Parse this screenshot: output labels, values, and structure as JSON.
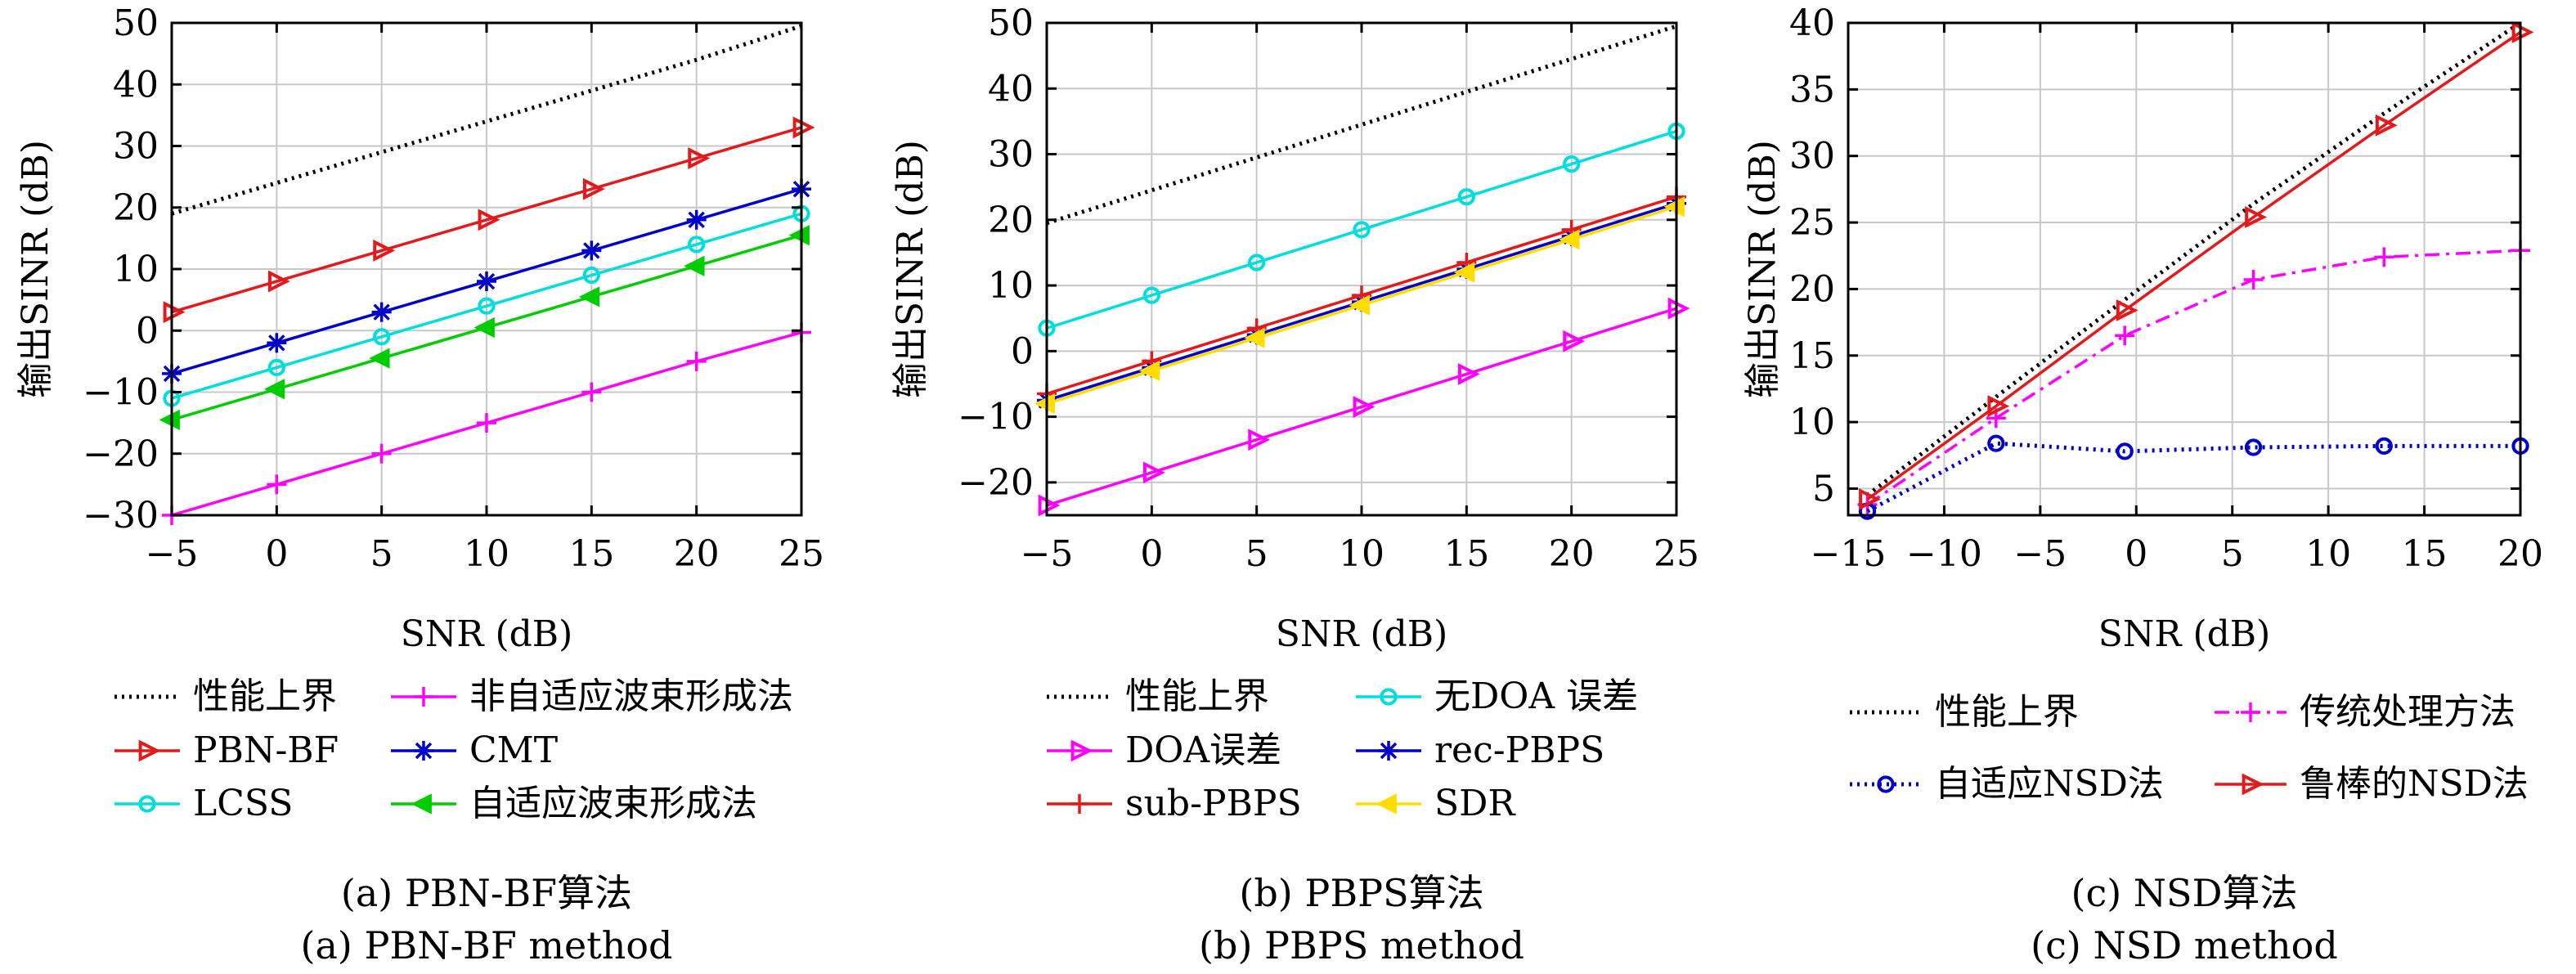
{
  "chart_data": [
    {
      "type": "line",
      "ylabel": "输出SINR (dB)",
      "xlabel": "SNR (dB)",
      "xlim": [
        -5,
        25
      ],
      "ylim": [
        -30,
        50
      ],
      "xticks": [
        -5,
        0,
        5,
        10,
        15,
        20,
        25
      ],
      "yticks": [
        -30,
        -20,
        -10,
        0,
        10,
        20,
        30,
        40,
        50
      ],
      "x": [
        -5,
        0,
        5,
        10,
        15,
        20,
        25
      ],
      "grid": true,
      "legend_placement": "bottom",
      "caption_cn": "(a) PBN-BF算法",
      "caption_en": "(a) PBN-BF method",
      "series": [
        {
          "name": "性能上界",
          "color": "#000000",
          "marker": "none",
          "dash": "dotted",
          "values": [
            19,
            24,
            29,
            34,
            39,
            44,
            49.5
          ]
        },
        {
          "name": "非自适应波束形成法",
          "color": "#ff00ff",
          "marker": "plus",
          "dash": "solid",
          "values": [
            -30,
            -25,
            -20,
            -15,
            -10,
            -5,
            -0.3
          ]
        },
        {
          "name": "PBN-BF",
          "color": "#e31a1c",
          "marker": "triangle-right",
          "dash": "solid",
          "values": [
            3,
            8,
            13,
            18,
            23,
            28,
            33
          ]
        },
        {
          "name": "CMT",
          "color": "#0000cc",
          "marker": "star",
          "dash": "solid",
          "values": [
            -7,
            -2,
            3,
            8,
            13,
            18,
            23
          ]
        },
        {
          "name": "LCSS",
          "color": "#00dddd",
          "marker": "circle",
          "dash": "solid",
          "values": [
            -11,
            -6,
            -1,
            4,
            9,
            14,
            19
          ]
        },
        {
          "name": "自适应波束形成法",
          "color": "#00cc00",
          "marker": "triangle-left",
          "dash": "solid",
          "values": [
            -14.5,
            -9.5,
            -4.5,
            0.5,
            5.5,
            10.5,
            15.5
          ]
        }
      ]
    },
    {
      "type": "line",
      "ylabel": "输出SINR (dB)",
      "xlabel": "SNR (dB)",
      "xlim": [
        -5,
        25
      ],
      "ylim": [
        -25,
        50
      ],
      "xticks": [
        -5,
        0,
        5,
        10,
        15,
        20,
        25
      ],
      "yticks": [
        -20,
        -10,
        0,
        10,
        20,
        30,
        40,
        50
      ],
      "x": [
        -5,
        0,
        5,
        10,
        15,
        20,
        25
      ],
      "grid": true,
      "legend_placement": "bottom",
      "caption_cn": "(b) PBPS算法",
      "caption_en": "(b) PBPS method",
      "series": [
        {
          "name": "性能上界",
          "color": "#000000",
          "marker": "none",
          "dash": "dotted",
          "values": [
            19.5,
            24.5,
            29.5,
            34.5,
            39.5,
            44.5,
            49.5
          ]
        },
        {
          "name": "无DOA 误差",
          "color": "#00dddd",
          "marker": "circle",
          "dash": "solid",
          "values": [
            3.5,
            8.5,
            13.5,
            18.5,
            23.5,
            28.5,
            33.5
          ]
        },
        {
          "name": "DOA误差",
          "color": "#ff00ff",
          "marker": "triangle-right",
          "dash": "solid",
          "values": [
            -23.5,
            -18.5,
            -13.5,
            -8.5,
            -3.5,
            1.5,
            6.5
          ]
        },
        {
          "name": "rec-PBPS",
          "color": "#0000cc",
          "marker": "star",
          "dash": "solid",
          "values": [
            -7.5,
            -2.5,
            2.5,
            7.5,
            12.5,
            17.5,
            22.5
          ]
        },
        {
          "name": "sub-PBPS",
          "color": "#e31a1c",
          "marker": "plus",
          "dash": "solid",
          "values": [
            -6.5,
            -1.5,
            3.5,
            8.5,
            13.5,
            18.5,
            23.5
          ]
        },
        {
          "name": "SDR",
          "color": "#ffdd00",
          "marker": "triangle-left",
          "dash": "solid",
          "values": [
            -8,
            -3,
            2,
            7,
            12,
            17,
            22
          ]
        }
      ]
    },
    {
      "type": "line",
      "ylabel": "输出SINR (dB)",
      "xlabel": "SNR (dB)",
      "xlim": [
        -15,
        20
      ],
      "ylim": [
        3,
        40
      ],
      "xticks": [
        -15,
        -10,
        -5,
        0,
        5,
        10,
        15,
        20
      ],
      "yticks": [
        5,
        10,
        15,
        20,
        25,
        30,
        35,
        40
      ],
      "x": [
        -14,
        -7.3,
        -0.6,
        6.1,
        12.9,
        20
      ],
      "grid": true,
      "legend_placement": "bottom",
      "caption_cn": "(c) NSD算法",
      "caption_en": "(c) NSD method",
      "series": [
        {
          "name": "性能上界",
          "color": "#000000",
          "marker": "none",
          "dash": "dotted",
          "values": [
            4.5,
            11.9,
            19.2,
            26.4,
            33.2,
            40
          ]
        },
        {
          "name": "传统处理方法",
          "color": "#ff00ff",
          "marker": "plus",
          "dash": "dashdot",
          "values": [
            3.8,
            10.3,
            16.5,
            20.7,
            22.4,
            22.9
          ]
        },
        {
          "name": "自适应NSD法",
          "color": "#0000cc",
          "marker": "circle",
          "dash": "dotted",
          "values": [
            3.3,
            8.4,
            7.8,
            8.1,
            8.2,
            8.2
          ]
        },
        {
          "name": "鲁棒的NSD法",
          "color": "#e31a1c",
          "marker": "triangle-right",
          "dash": "solid",
          "values": [
            4.2,
            11.2,
            18.4,
            25.4,
            32.3,
            39.3
          ]
        }
      ]
    }
  ]
}
